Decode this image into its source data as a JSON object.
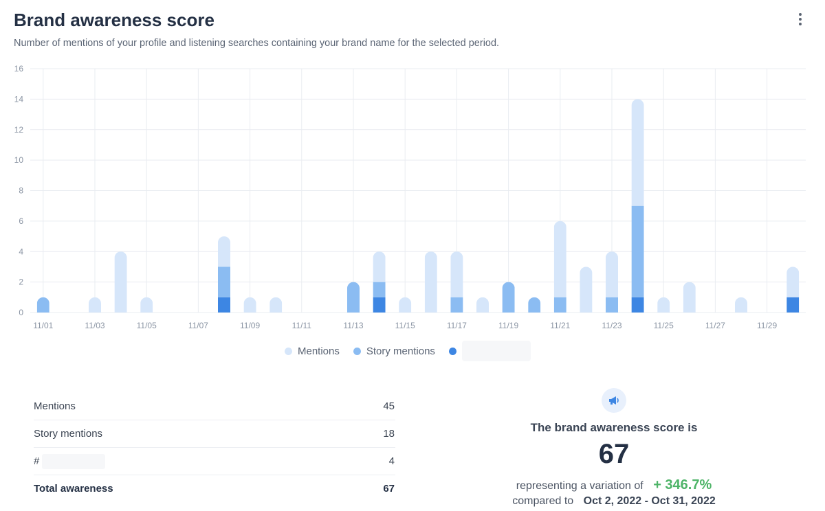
{
  "header": {
    "title": "Brand awareness score",
    "subtitle": "Number of mentions of your profile and listening searches containing your brand name for the selected period."
  },
  "icons": {
    "menu": "kebab-menu-icon",
    "score": "megaphone-icon"
  },
  "colors": {
    "mentions": "#d6e6fa",
    "story_mentions": "#8bbcf2",
    "third_series": "#3d86e3",
    "grid": "#e9ecf1",
    "axis_text": "#8a94a3",
    "positive": "#4eb468"
  },
  "chart_data": {
    "type": "bar",
    "stacked": true,
    "categories": [
      "11/01",
      "11/02",
      "11/03",
      "11/04",
      "11/05",
      "11/06",
      "11/07",
      "11/08",
      "11/09",
      "11/10",
      "11/11",
      "11/12",
      "11/13",
      "11/14",
      "11/15",
      "11/16",
      "11/17",
      "11/18",
      "11/19",
      "11/20",
      "11/21",
      "11/22",
      "11/23",
      "11/24",
      "11/25",
      "11/26",
      "11/27",
      "11/28",
      "11/29",
      "11/30"
    ],
    "tick_labels": [
      "11/01",
      "11/03",
      "11/05",
      "11/07",
      "11/09",
      "11/11",
      "11/13",
      "11/15",
      "11/17",
      "11/19",
      "11/21",
      "11/23",
      "11/25",
      "11/27",
      "11/29"
    ],
    "series": [
      {
        "name": "",
        "values": [
          0,
          0,
          0,
          0,
          0,
          0,
          0,
          1,
          0,
          0,
          0,
          0,
          0,
          1,
          0,
          0,
          0,
          0,
          0,
          0,
          0,
          0,
          0,
          1,
          0,
          0,
          0,
          0,
          0,
          1
        ]
      },
      {
        "name": "Story mentions",
        "values": [
          1,
          0,
          0,
          0,
          0,
          0,
          0,
          2,
          0,
          0,
          0,
          0,
          2,
          1,
          0,
          0,
          1,
          0,
          2,
          1,
          1,
          0,
          1,
          6,
          0,
          0,
          0,
          0,
          0,
          0
        ]
      },
      {
        "name": "Mentions",
        "values": [
          0,
          0,
          1,
          4,
          1,
          0,
          0,
          2,
          1,
          1,
          0,
          0,
          0,
          2,
          1,
          4,
          3,
          1,
          0,
          0,
          5,
          3,
          3,
          7,
          1,
          2,
          0,
          1,
          0,
          2
        ]
      }
    ],
    "ylim": [
      0,
      16
    ],
    "yticks": [
      0,
      2,
      4,
      6,
      8,
      10,
      12,
      14,
      16
    ],
    "grid": true,
    "legend_position": "bottom-center"
  },
  "summary": {
    "rows": [
      {
        "label": "Mentions",
        "value": "45"
      },
      {
        "label": "Story mentions",
        "value": "18"
      },
      {
        "label": "#",
        "value": "4"
      },
      {
        "label": "Total awareness",
        "value": "67"
      }
    ]
  },
  "score": {
    "title": "The brand awareness score is",
    "value": "67",
    "variation_prefix": "representing a variation of",
    "variation": "+ 346.7%",
    "compare_prefix": "compared to",
    "compare_range": "Oct 2, 2022 - Oct 31, 2022"
  }
}
